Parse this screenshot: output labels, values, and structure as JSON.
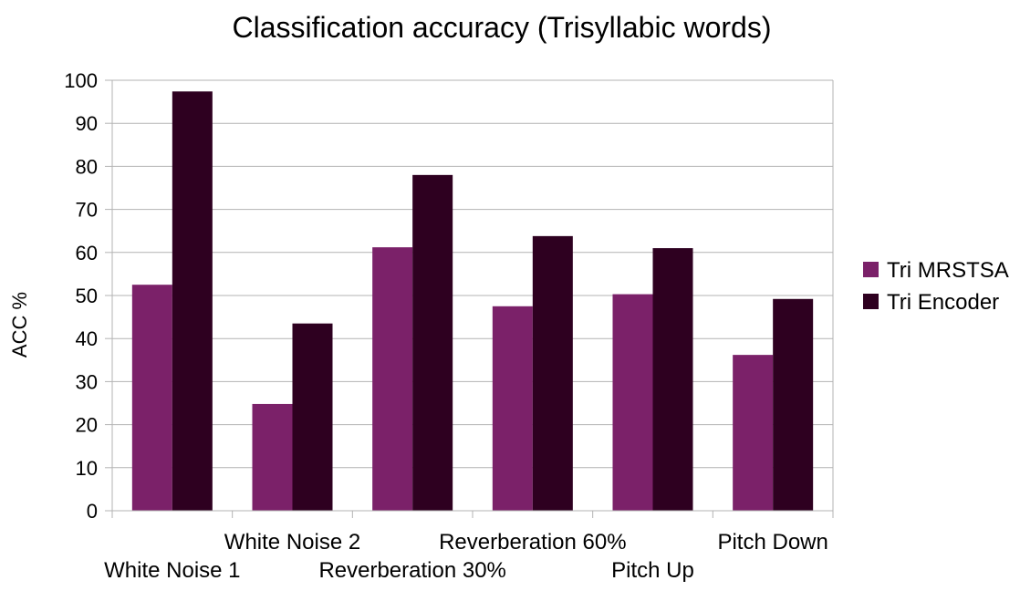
{
  "chart_data": {
    "type": "bar",
    "title": "Classification accuracy (Trisyllabic words)",
    "xlabel": "",
    "ylabel": "ACC %",
    "ylim": [
      0,
      100
    ],
    "yticks": [
      0,
      10,
      20,
      30,
      40,
      50,
      60,
      70,
      80,
      90,
      100
    ],
    "grid": true,
    "legend_position": "right",
    "categories": [
      "White Noise 1",
      "White Noise 2",
      "Reverberation 30%",
      "Reverberation 60%",
      "Pitch Up",
      "Pitch Down"
    ],
    "series": [
      {
        "name": "Tri MRSTSA",
        "color": "#7b2169",
        "values": [
          52.5,
          24.8,
          61.2,
          47.5,
          50.3,
          36.2
        ]
      },
      {
        "name": "Tri Encoder",
        "color": "#2e0020",
        "values": [
          97.4,
          43.5,
          78.0,
          63.8,
          61.0,
          49.2
        ]
      }
    ]
  }
}
